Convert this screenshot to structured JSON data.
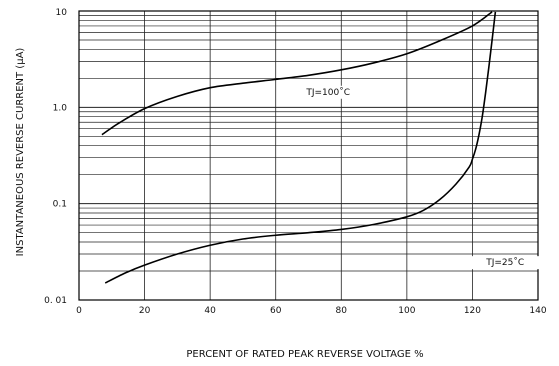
{
  "chart_data": {
    "type": "line",
    "title": "",
    "xlabel": "PERCENT OF RATED PEAK REVERSE VOLTAGE %",
    "ylabel": "INSTANTANEOUS REVERSE CURRENT  (μA)",
    "xlim": [
      0,
      140
    ],
    "ylim": [
      0.01,
      10
    ],
    "y_scale": "log",
    "grid": true,
    "x_ticks": [
      "0",
      "20",
      "40",
      "60",
      "80",
      "100",
      "120",
      "140"
    ],
    "y_ticks": [
      {
        "value": 10,
        "label": "10"
      },
      {
        "value": 1,
        "label": "1.0"
      },
      {
        "value": 0.1,
        "label": "0.1"
      },
      {
        "value": 0.01,
        "label": "0. 01"
      }
    ],
    "series": [
      {
        "name": "TJ=100˚C",
        "points": [
          [
            7,
            0.52
          ],
          [
            12,
            0.68
          ],
          [
            20,
            0.97
          ],
          [
            30,
            1.3
          ],
          [
            40,
            1.6
          ],
          [
            50,
            1.78
          ],
          [
            60,
            1.95
          ],
          [
            70,
            2.15
          ],
          [
            80,
            2.45
          ],
          [
            90,
            2.9
          ],
          [
            100,
            3.6
          ],
          [
            110,
            4.9
          ],
          [
            120,
            7.0
          ],
          [
            126,
            9.8
          ]
        ]
      },
      {
        "name": "TJ=25˚C",
        "points": [
          [
            8,
            0.015
          ],
          [
            14,
            0.019
          ],
          [
            20,
            0.023
          ],
          [
            30,
            0.03
          ],
          [
            40,
            0.037
          ],
          [
            50,
            0.043
          ],
          [
            60,
            0.047
          ],
          [
            70,
            0.05
          ],
          [
            80,
            0.054
          ],
          [
            90,
            0.061
          ],
          [
            100,
            0.073
          ],
          [
            105,
            0.085
          ],
          [
            110,
            0.11
          ],
          [
            115,
            0.16
          ],
          [
            119,
            0.24
          ],
          [
            120,
            0.29
          ],
          [
            121,
            0.37
          ],
          [
            122,
            0.52
          ],
          [
            123,
            0.8
          ],
          [
            124,
            1.4
          ],
          [
            125,
            2.6
          ],
          [
            126,
            5.0
          ],
          [
            127,
            9.8
          ]
        ]
      }
    ],
    "annotations": [
      {
        "text": "TJ=100˚C",
        "series": 0
      },
      {
        "text": "TJ=25˚C",
        "series": 1
      }
    ]
  }
}
